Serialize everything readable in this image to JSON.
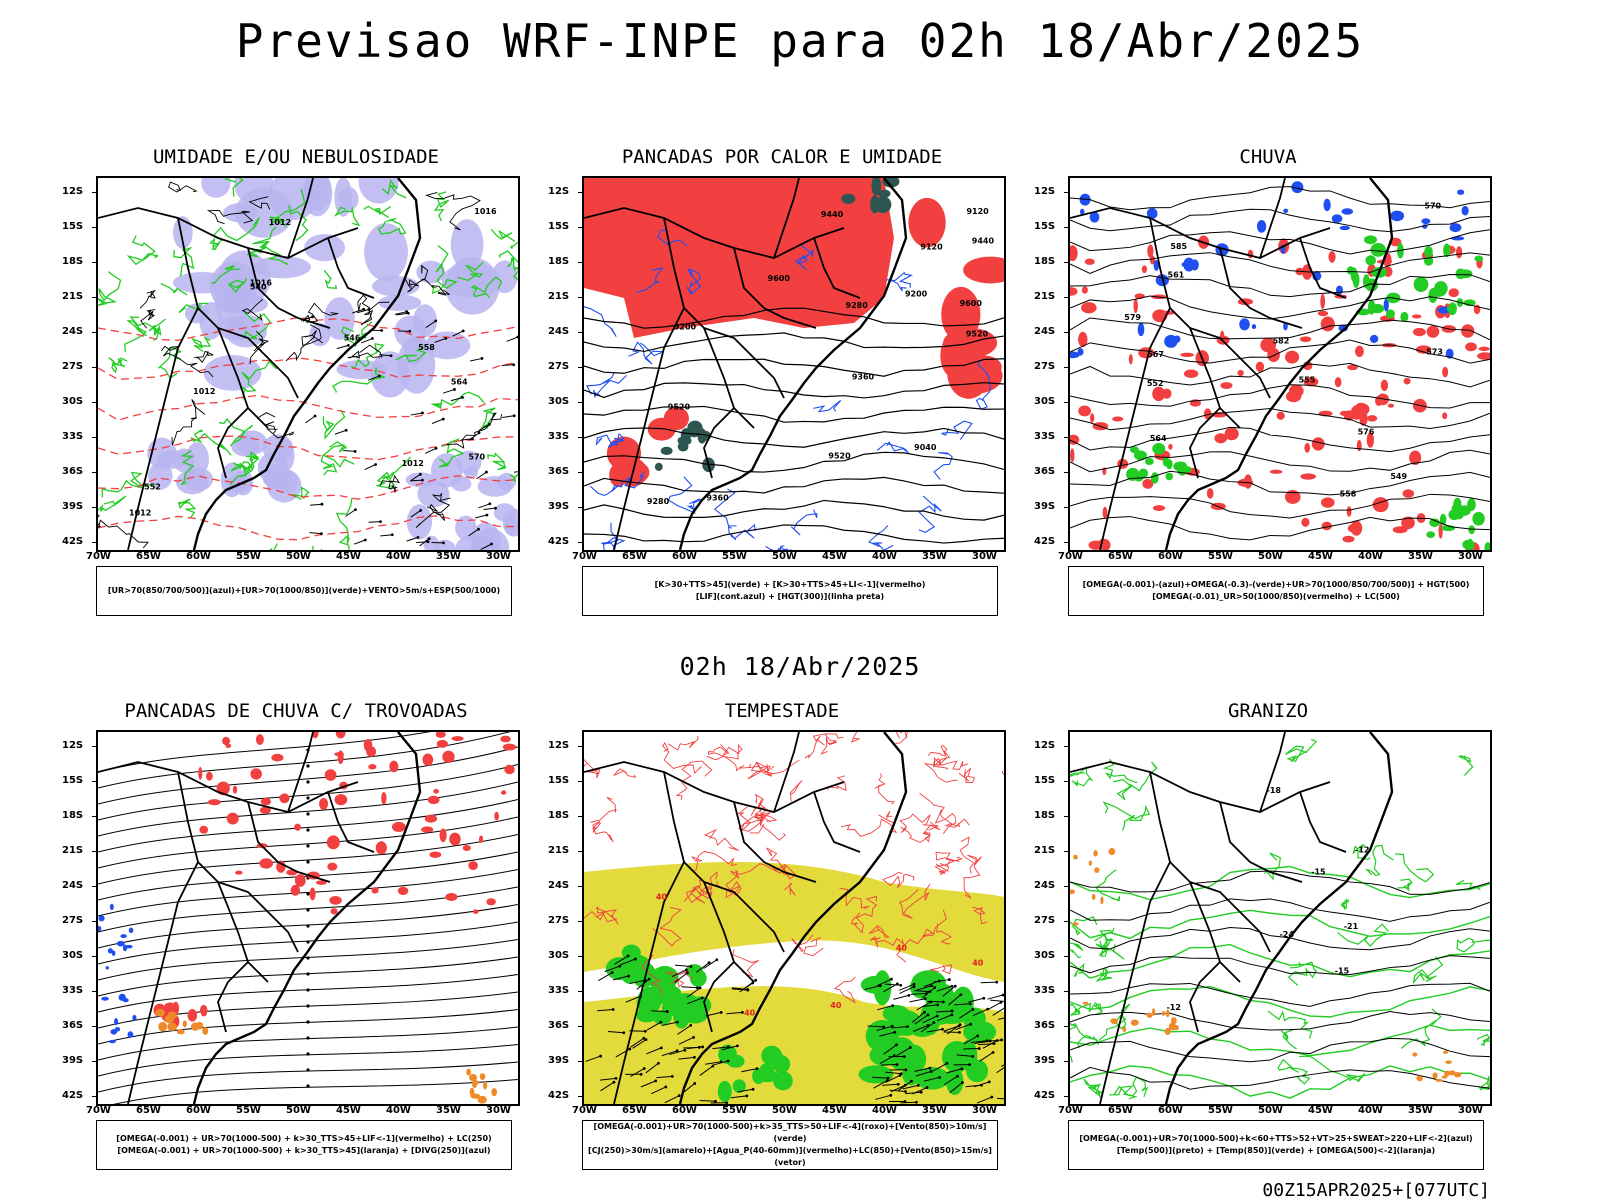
{
  "title": "Previsao WRF-INPE  para 02h 18/Abr/2025",
  "mid_date": "02h 18/Abr/2025",
  "footer": "00Z15APR2025+[077UTC]",
  "lat_labels": [
    "12S",
    "15S",
    "18S",
    "21S",
    "24S",
    "27S",
    "30S",
    "33S",
    "36S",
    "39S",
    "42S"
  ],
  "lon_labels": [
    "70W",
    "65W",
    "60W",
    "55W",
    "50W",
    "45W",
    "40W",
    "35W",
    "30W"
  ],
  "panels": [
    {
      "title": "UMIDADE E/OU NEBULOSIDADE",
      "legend": [
        "[UR>70(850/700/500)](azul)+[UR>70(1000/850)](verde)+VENTO>5m/s+ESP(500/1000)"
      ],
      "contour_labels": [
        "1012",
        "1012",
        "1012",
        "1012",
        "1016",
        "1016",
        "570",
        "564",
        "558",
        "552",
        "546",
        "540"
      ]
    },
    {
      "title": "PANCADAS POR CALOR E UMIDADE",
      "legend": [
        "[K>30+TTS>45](verde) + [K>30+TTS>45+LI<-1](vermelho)",
        "[LIF](cont.azul) + [HGT(300)](linha preta)"
      ],
      "contour_labels": [
        "9600",
        "9600",
        "9520",
        "9520",
        "9520",
        "9440",
        "9440",
        "9360",
        "9360",
        "9280",
        "9280",
        "9200",
        "9200",
        "9120",
        "9120",
        "9040"
      ]
    },
    {
      "title": "CHUVA",
      "legend": [
        "[OMEGA(-0.001)-(azul)+OMEGA(-0.3)-(verde)+UR>70(1000/850/700/500)] + HGT(500)",
        "[OMEGA(-0.01)_UR>50(1000/850)(vermelho) + LC(500)"
      ],
      "contour_labels": [
        "585",
        "582",
        "579",
        "576",
        "573",
        "570",
        "567",
        "564",
        "561",
        "558",
        "555",
        "552",
        "549"
      ]
    },
    {
      "title": "PANCADAS DE CHUVA C/ TROVOADAS",
      "legend": [
        "[OMEGA(-0.001) + UR>70(1000-500) + k>30_TTS>45+LIF<-1](vermelho) + LC(250)",
        "[OMEGA(-0.001) + UR>70(1000-500) + k>30_TTS>45](laranja) + [DIVG(250)](azul)"
      ],
      "contour_labels": []
    },
    {
      "title": "TEMPESTADE",
      "legend": [
        "[OMEGA(-0.001)+UR>70(1000-500)+k>35_TTS>50+LIF<-4](roxo)+[Vento(850)>10m/s](verde)",
        "[CJ(250)>30m/s](amarelo)+[Agua_P(40-60mm)](vermelho)+LC(850)+[Vento(850)>15m/s](vetor)"
      ],
      "contour_labels": [
        "40",
        "40",
        "40",
        "40",
        "40"
      ]
    },
    {
      "title": "GRANIZO",
      "legend": [
        "[OMEGA(-0.001)+UR>70(1000-500)+k<60+TTS>52+VT>25+SWEAT>220+LIF<-2](azul)",
        "[Temp(500)](preto) + [Temp(850)](verde) + [OMEGA(500)<-2](laranja)"
      ],
      "contour_labels": [
        "-12",
        "-12",
        "-15",
        "-15",
        "-18",
        "-21",
        "-24"
      ]
    }
  ],
  "colors": {
    "green": "#22cc22",
    "red": "#f24040",
    "blue": "#1f4ff0",
    "lavender": "#b8b4f0",
    "yellow": "#e3da3c",
    "orange": "#ef8a2a",
    "darkteal": "#2f5550"
  }
}
